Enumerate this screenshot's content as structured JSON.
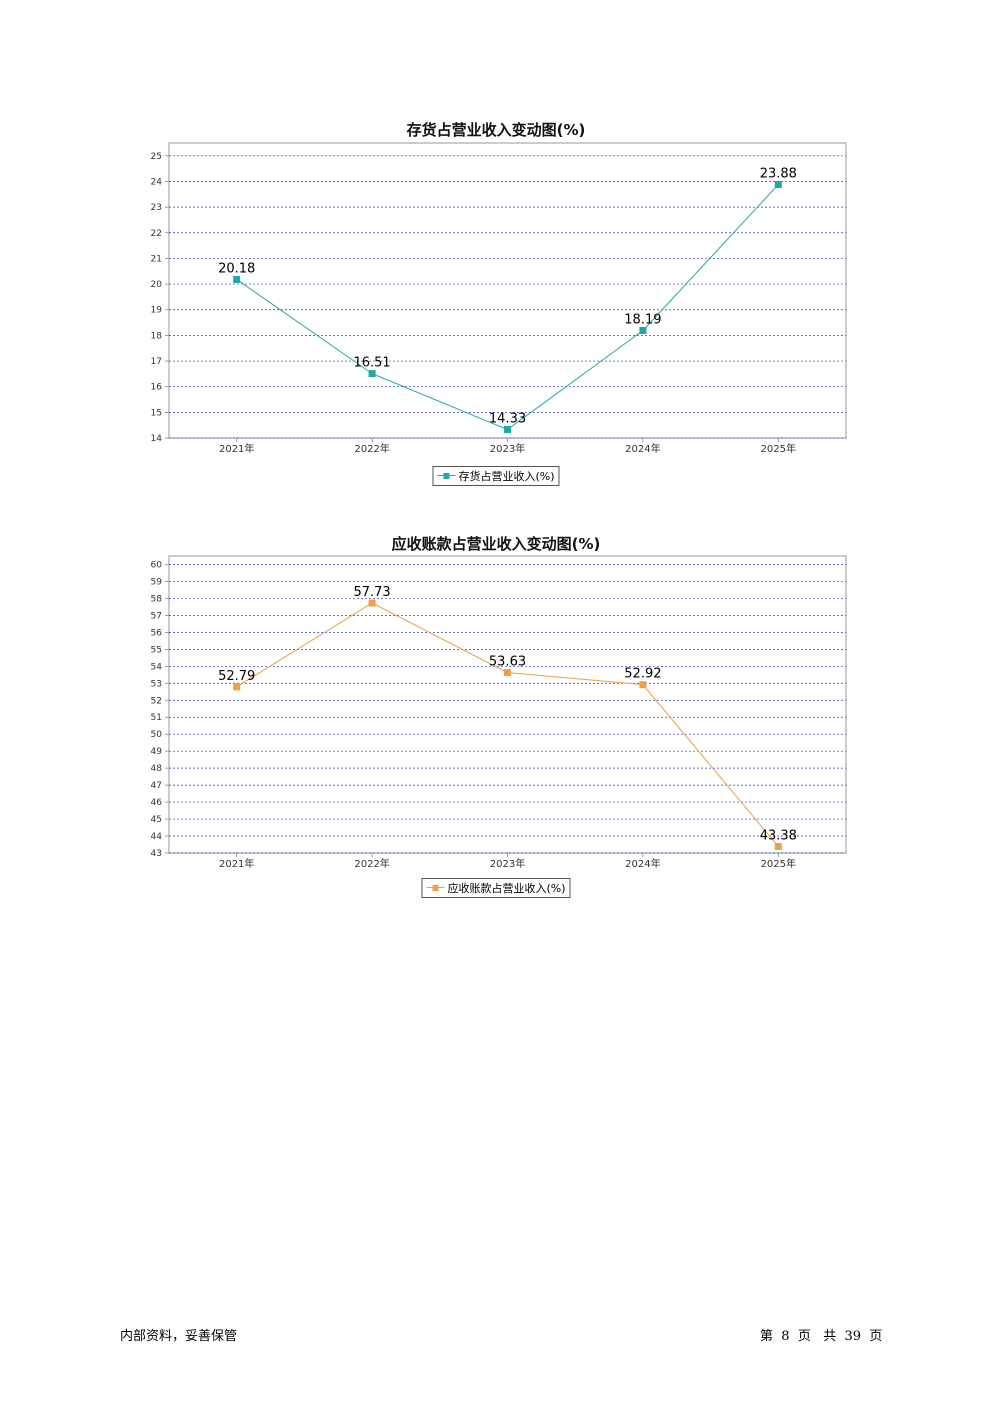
{
  "footer": {
    "left_text": "内部资料，妥善保管",
    "page_label_pre": "第",
    "page_current": "8",
    "page_label_mid": "页",
    "page_total_label": "共",
    "page_total": "39",
    "page_label_post": "页"
  },
  "chart_data": [
    {
      "type": "line",
      "title": "存货占营业收入变动图(%)",
      "categories": [
        "2021年",
        "2022年",
        "2023年",
        "2024年",
        "2025年"
      ],
      "series": [
        {
          "name": "存货占营业收入(%)",
          "values": [
            20.18,
            16.51,
            14.33,
            18.19,
            23.88
          ],
          "color": "#20a8a8"
        }
      ],
      "data_labels": [
        "20.18",
        "16.51",
        "14.33",
        "18.19",
        "23.88"
      ],
      "ylim": [
        14,
        25.5
      ],
      "yticks": [
        14,
        15,
        16,
        17,
        18,
        19,
        20,
        21,
        22,
        23,
        24,
        25
      ],
      "ytick_labels": [
        "14",
        "15",
        "16",
        "17",
        "18",
        "19",
        "20",
        "21",
        "22",
        "23",
        "24",
        "25"
      ],
      "grid": true,
      "grid_color": "#3333cc",
      "legend_position": "bottom"
    },
    {
      "type": "line",
      "title": "应收账款占营业收入变动图(%)",
      "categories": [
        "2021年",
        "2022年",
        "2023年",
        "2024年",
        "2025年"
      ],
      "series": [
        {
          "name": "应收账款占营业收入(%)",
          "values": [
            52.79,
            57.73,
            53.63,
            52.92,
            43.38
          ],
          "color": "#f0a040"
        }
      ],
      "data_labels": [
        "52.79",
        "57.73",
        "53.63",
        "52.92",
        "43.38"
      ],
      "ylim": [
        43,
        60.5
      ],
      "yticks": [
        43,
        44,
        45,
        46,
        47,
        48,
        49,
        50,
        51,
        52,
        53,
        54,
        55,
        56,
        57,
        58,
        59,
        60
      ],
      "ytick_labels": [
        "43",
        "44",
        "45",
        "46",
        "47",
        "48",
        "49",
        "50",
        "51",
        "52",
        "53",
        "54",
        "55",
        "56",
        "57",
        "58",
        "59",
        "60"
      ],
      "grid": true,
      "grid_color": "#3333cc",
      "legend_position": "bottom"
    }
  ]
}
